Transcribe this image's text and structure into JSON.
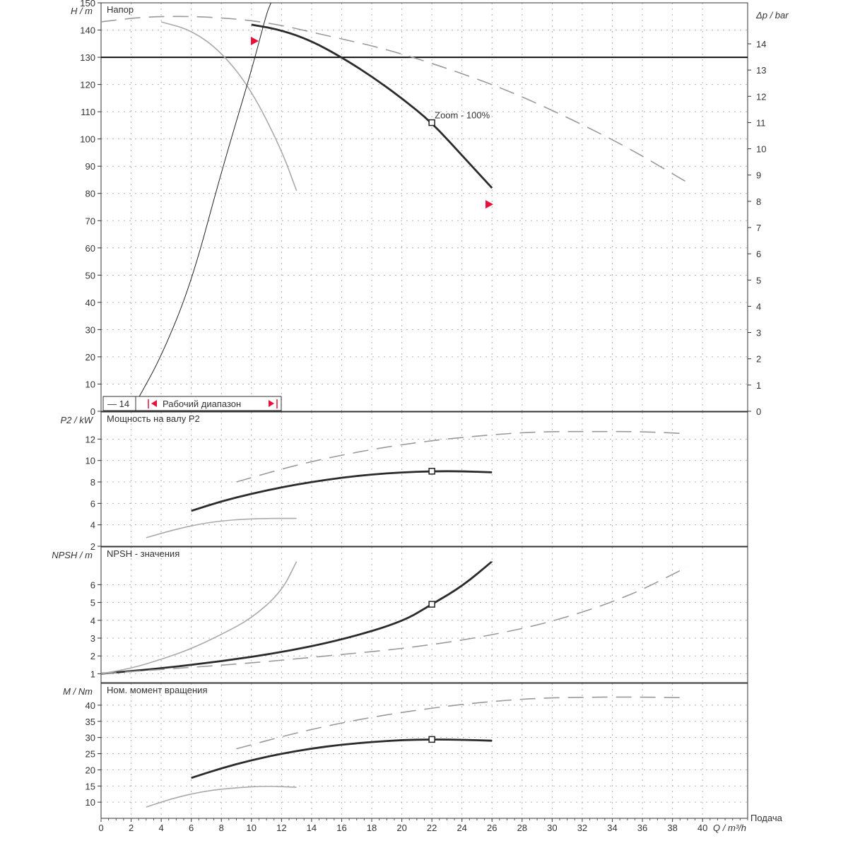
{
  "chart_data": [
    {
      "type": "line",
      "title": "Напор",
      "ylabel": "H / m",
      "y2label": "Δp / bar",
      "ylim": [
        0,
        150
      ],
      "y2lim": [
        0,
        14
      ],
      "xlim": [
        0,
        43
      ],
      "yticks": [
        0,
        10,
        20,
        30,
        40,
        50,
        60,
        70,
        80,
        90,
        100,
        110,
        120,
        130,
        140,
        150
      ],
      "y2ticks": [
        0,
        1,
        2,
        3,
        4,
        5,
        6,
        7,
        8,
        9,
        10,
        11,
        12,
        13,
        14
      ],
      "reference_line": 130,
      "point_label": "Zoom - 100%",
      "series": [
        {
          "style": "main",
          "x": [
            10,
            12,
            14,
            16,
            18,
            20,
            22,
            24,
            26
          ],
          "y": [
            142,
            140,
            136,
            130,
            123,
            115,
            106,
            94,
            82
          ]
        },
        {
          "style": "dashed",
          "x": [
            0,
            3,
            7,
            11,
            15,
            19,
            23,
            27,
            31,
            35,
            39
          ],
          "y": [
            143,
            145,
            145,
            143,
            138,
            133,
            126,
            118,
            108,
            97,
            84
          ]
        },
        {
          "style": "thin",
          "x": [
            4,
            6,
            8,
            10,
            12,
            13
          ],
          "y": [
            143,
            140,
            132,
            118,
            96,
            81
          ]
        },
        {
          "style": "system",
          "x": [
            2.5,
            4,
            6,
            8,
            10,
            11,
            11.3
          ],
          "y": [
            5,
            20,
            47,
            88,
            125,
            146,
            150
          ]
        }
      ],
      "markers": [
        {
          "x": 22,
          "y": 106
        },
        {
          "x": 10.2,
          "y": 136
        },
        {
          "x": 25.8,
          "y": 76
        }
      ]
    },
    {
      "type": "line",
      "title": "Мощность на валу P2",
      "ylabel": "P2 / kW",
      "ylim": [
        2,
        14
      ],
      "yticks": [
        2,
        4,
        6,
        8,
        10,
        12
      ],
      "series": [
        {
          "style": "main",
          "x": [
            6,
            8,
            10,
            12,
            14,
            16,
            18,
            20,
            22,
            24,
            26
          ],
          "y": [
            5.3,
            6.2,
            6.9,
            7.5,
            8.0,
            8.4,
            8.7,
            8.9,
            9.0,
            9.0,
            8.9
          ]
        },
        {
          "style": "dashed",
          "x": [
            9,
            13,
            17,
            21,
            25,
            29,
            33,
            36,
            39
          ],
          "y": [
            8.0,
            9.6,
            10.8,
            11.7,
            12.3,
            12.7,
            12.7,
            12.7,
            12.5
          ]
        },
        {
          "style": "thin",
          "x": [
            3,
            5,
            7,
            9,
            11,
            13
          ],
          "y": [
            2.8,
            3.6,
            4.2,
            4.5,
            4.6,
            4.6
          ]
        }
      ],
      "markers": [
        {
          "x": 22,
          "y": 9.0
        }
      ]
    },
    {
      "type": "line",
      "title": "NPSH - значения",
      "ylabel": "NPSH / m",
      "ylim": [
        0.5,
        7.8
      ],
      "yticks": [
        1,
        2,
        3,
        4,
        5,
        6
      ],
      "series": [
        {
          "style": "main",
          "x": [
            0,
            4,
            8,
            12,
            16,
            20,
            22,
            24,
            26
          ],
          "y": [
            1.0,
            1.3,
            1.7,
            2.2,
            2.9,
            3.9,
            4.9,
            5.9,
            7.3
          ]
        },
        {
          "style": "dashed",
          "x": [
            0,
            5,
            10,
            15,
            20,
            25,
            30,
            35,
            39
          ],
          "y": [
            1.0,
            1.3,
            1.6,
            2.0,
            2.4,
            3.0,
            3.9,
            5.3,
            7.0
          ]
        },
        {
          "style": "thin",
          "x": [
            0,
            2,
            4,
            6,
            8,
            10,
            12,
            13
          ],
          "y": [
            1.0,
            1.3,
            1.8,
            2.4,
            3.2,
            4.1,
            5.6,
            7.3
          ]
        }
      ],
      "markers": [
        {
          "x": 22,
          "y": 4.9
        }
      ]
    },
    {
      "type": "line",
      "title": "Ном. момент вращения",
      "ylabel": "M / Nm",
      "xlabel": "Q / m³/h",
      "x_axis_caption": "Подача",
      "ylim": [
        5,
        45
      ],
      "yticks": [
        10,
        15,
        20,
        25,
        30,
        35,
        40
      ],
      "xticks": [
        0,
        2,
        4,
        6,
        8,
        10,
        12,
        14,
        16,
        18,
        20,
        22,
        24,
        26,
        28,
        30,
        32,
        34,
        36,
        38,
        40
      ],
      "series": [
        {
          "style": "main",
          "x": [
            6,
            8,
            10,
            12,
            14,
            16,
            18,
            20,
            22,
            24,
            26
          ],
          "y": [
            17.5,
            20.5,
            23.0,
            25.0,
            26.6,
            27.8,
            28.6,
            29.2,
            29.4,
            29.3,
            29.0
          ]
        },
        {
          "style": "dashed",
          "x": [
            9,
            13,
            17,
            21,
            25,
            29,
            33,
            36,
            39
          ],
          "y": [
            26.5,
            31.5,
            35.5,
            38.5,
            40.8,
            42.2,
            42.5,
            42.5,
            42.3
          ]
        },
        {
          "style": "thin",
          "x": [
            3,
            5,
            7,
            9,
            11,
            13
          ],
          "y": [
            8.5,
            11.5,
            13.5,
            14.5,
            15.0,
            14.6
          ]
        }
      ],
      "markers": [
        {
          "x": 22,
          "y": 29.4
        }
      ]
    }
  ],
  "legend": {
    "item1": "— 14",
    "item2": "Рабочий диапазон"
  },
  "colors": {
    "main": "#2b2b2b",
    "dashed": "#9a9a9a",
    "thin": "#aaaaaa",
    "marker_red": "#e8103a"
  }
}
